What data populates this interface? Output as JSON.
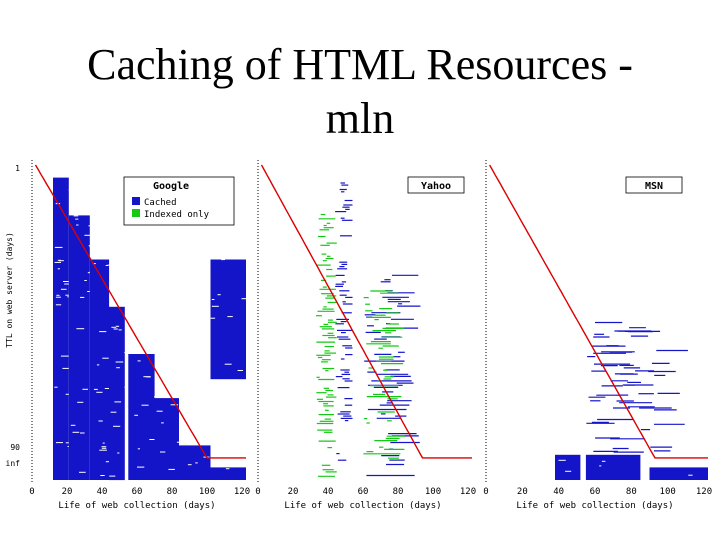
{
  "slide": {
    "title_line1": "Caching of HTML Resources -",
    "title_line2": "mln"
  },
  "colors": {
    "cached": "#1414c8",
    "indexed_only": "#14c814",
    "ttl_curve": "#dc0000",
    "background": "#ffffff"
  },
  "chart_data": [
    {
      "type": "bar",
      "title": "Google",
      "xlabel": "Life of web collection (days)",
      "ylabel": "TTL on web server (days)",
      "xlim": [
        0,
        120
      ],
      "x_ticks": [
        "0",
        "20",
        "40",
        "60",
        "80",
        "100",
        "120"
      ],
      "y_tick_labels": [
        "1",
        "90",
        "inf"
      ],
      "legend": {
        "position": "top-right",
        "entries": [
          "Cached",
          "Indexed only"
        ]
      },
      "series": [
        {
          "name": "Cached",
          "values": [
            {
              "x0": 12,
              "x1": 21,
              "y0": 0.04,
              "y1": 1.0
            },
            {
              "x0": 21,
              "x1": 33,
              "y0": 0.16,
              "y1": 1.0
            },
            {
              "x0": 33,
              "x1": 44,
              "y0": 0.3,
              "y1": 1.0
            },
            {
              "x0": 44,
              "x1": 53,
              "y0": 0.45,
              "y1": 1.0
            },
            {
              "x0": 55,
              "x1": 70,
              "y0": 0.6,
              "y1": 1.0
            },
            {
              "x0": 70,
              "x1": 84,
              "y0": 0.74,
              "y1": 1.0
            },
            {
              "x0": 84,
              "x1": 102,
              "y0": 0.89,
              "y1": 1.0
            },
            {
              "x0": 102,
              "x1": 123,
              "y0": 0.3,
              "y1": 0.68
            },
            {
              "x0": 102,
              "x1": 123,
              "y0": 0.96,
              "y1": 1.0
            }
          ]
        },
        {
          "name": "Indexed only",
          "values": []
        }
      ]
    },
    {
      "type": "scatter",
      "title": "Yahoo",
      "xlabel": "Life of web collection (days)",
      "xlim": [
        0,
        120
      ],
      "x_ticks": [
        "0",
        "20",
        "40",
        "60",
        "80",
        "100",
        "120"
      ],
      "series": [
        {
          "name": "Cached",
          "values": [
            {
              "x0": 44,
              "x1": 54,
              "y0": 0.05,
              "y1": 0.95
            },
            {
              "x0": 60,
              "x1": 95,
              "y0": 0.35,
              "y1": 1.0
            }
          ]
        },
        {
          "name": "Indexed only",
          "values": [
            {
              "x0": 33,
              "x1": 45,
              "y0": 0.15,
              "y1": 1.0
            },
            {
              "x0": 60,
              "x1": 85,
              "y0": 0.4,
              "y1": 0.95
            }
          ]
        }
      ]
    },
    {
      "type": "bar",
      "title": "MSN",
      "xlabel": "Life of web collection (days)",
      "xlim": [
        0,
        120
      ],
      "x_ticks": [
        "0",
        "20",
        "40",
        "60",
        "80",
        "100",
        "120"
      ],
      "series": [
        {
          "name": "Cached",
          "values": [
            {
              "x0": 38,
              "x1": 52,
              "y0": 0.92,
              "y1": 1.0
            },
            {
              "x0": 55,
              "x1": 85,
              "y0": 0.92,
              "y1": 1.0
            },
            {
              "x0": 90,
              "x1": 123,
              "y0": 0.96,
              "y1": 1.0
            }
          ]
        }
      ]
    }
  ]
}
